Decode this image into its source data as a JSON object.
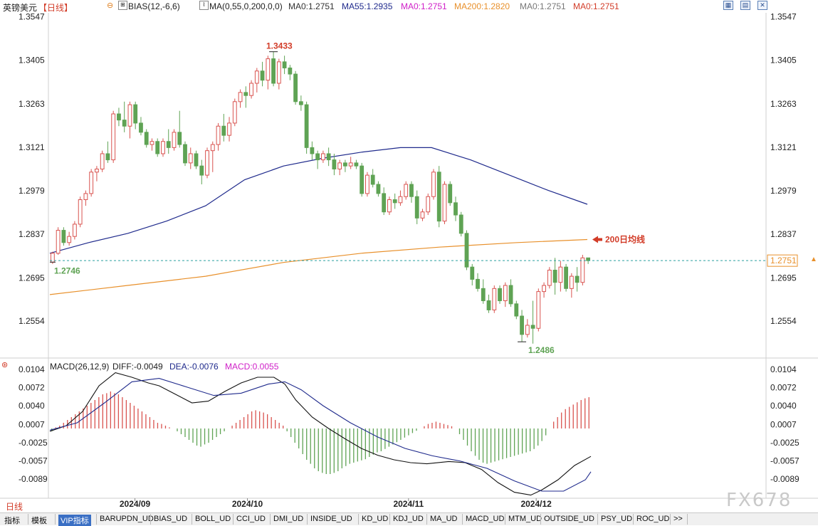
{
  "header": {
    "symbol": "英镑美元",
    "period": "【日线】",
    "bias": "BIAS(12,-6,6)",
    "ma_params": "MA(0,55,0,200,0,0)",
    "ma0_a": "MA0:1.2751",
    "ma55": "MA55:1.2935",
    "ma0_b": "MA0:1.2751",
    "ma200": "MA200:1.2820",
    "ma0_c": "MA0:1.2751",
    "ma0_d": "MA0:1.2751"
  },
  "macd_header": {
    "title": "MACD(26,12,9)",
    "diff": "DIFF:-0.0049",
    "dea": "DEA:-0.0076",
    "macd": "MACD:0.0055"
  },
  "annotations": {
    "high": "1.3433",
    "low": "1.2486",
    "start": "1.2746",
    "ma200_label": "200日均线",
    "current_price": "1.2751"
  },
  "bottom_tabs": [
    "指标",
    "模板",
    "VIP指标",
    "BARUPDN_UD",
    "BIAS_UD",
    "BOLL_UD",
    "CCI_UD",
    "DMI_UD",
    "INSIDE_UD",
    "KD_UD",
    "KDJ_UD",
    "MA_UD",
    "MACD_UD",
    "MTM_UD",
    "OUTSIDE_UD",
    "PSY_UD",
    "ROC_UD",
    ">>"
  ],
  "period_button": "日线",
  "watermark": "FX678",
  "colors": {
    "up": "#d9534f",
    "down": "#5fa354",
    "ma55": "#1f2a8c",
    "ma200": "#e8902b",
    "diff": "#111111",
    "dea": "#1f2a8c",
    "macd_label": "#d020c8",
    "current": "#2aa0a0"
  },
  "chart_data": [
    {
      "type": "candlestick",
      "title": "英镑美元【日线】",
      "y_ticks": [
        "1.3547",
        "1.3405",
        "1.3263",
        "1.3121",
        "1.2979",
        "1.2837",
        "1.2695",
        "1.2554"
      ],
      "ylim": [
        1.244,
        1.356
      ],
      "x_ticks": [
        "2024/09",
        "2024/10",
        "2024/11",
        "2024/12"
      ],
      "candles": [
        [
          1.2746,
          1.278,
          1.274,
          1.2775
        ],
        [
          1.2775,
          1.286,
          1.277,
          1.285
        ],
        [
          1.285,
          1.286,
          1.28,
          1.281
        ],
        [
          1.281,
          1.2845,
          1.28,
          1.283
        ],
        [
          1.283,
          1.288,
          1.282,
          1.287
        ],
        [
          1.287,
          1.296,
          1.286,
          1.295
        ],
        [
          1.295,
          1.298,
          1.293,
          1.297
        ],
        [
          1.297,
          1.305,
          1.296,
          1.304
        ],
        [
          1.304,
          1.306,
          1.301,
          1.305
        ],
        [
          1.305,
          1.311,
          1.304,
          1.31
        ],
        [
          1.31,
          1.314,
          1.307,
          1.308
        ],
        [
          1.308,
          1.324,
          1.307,
          1.323
        ],
        [
          1.323,
          1.325,
          1.319,
          1.321
        ],
        [
          1.321,
          1.327,
          1.317,
          1.319
        ],
        [
          1.319,
          1.327,
          1.315,
          1.326
        ],
        [
          1.326,
          1.327,
          1.318,
          1.32
        ],
        [
          1.32,
          1.322,
          1.316,
          1.317
        ],
        [
          1.317,
          1.318,
          1.312,
          1.313
        ],
        [
          1.313,
          1.315,
          1.311,
          1.314
        ],
        [
          1.314,
          1.315,
          1.309,
          1.31
        ],
        [
          1.31,
          1.315,
          1.309,
          1.314
        ],
        [
          1.314,
          1.318,
          1.31,
          1.312
        ],
        [
          1.312,
          1.318,
          1.311,
          1.317
        ],
        [
          1.317,
          1.324,
          1.312,
          1.313
        ],
        [
          1.313,
          1.314,
          1.306,
          1.307
        ],
        [
          1.307,
          1.312,
          1.305,
          1.31
        ],
        [
          1.31,
          1.311,
          1.305,
          1.306
        ],
        [
          1.306,
          1.308,
          1.3,
          1.303
        ],
        [
          1.303,
          1.312,
          1.302,
          1.311
        ],
        [
          1.311,
          1.314,
          1.304,
          1.313
        ],
        [
          1.313,
          1.32,
          1.311,
          1.319
        ],
        [
          1.319,
          1.323,
          1.314,
          1.316
        ],
        [
          1.316,
          1.322,
          1.314,
          1.32
        ],
        [
          1.32,
          1.328,
          1.319,
          1.327
        ],
        [
          1.327,
          1.331,
          1.325,
          1.33
        ],
        [
          1.33,
          1.332,
          1.325,
          1.329
        ],
        [
          1.329,
          1.334,
          1.328,
          1.333
        ],
        [
          1.333,
          1.338,
          1.33,
          1.337
        ],
        [
          1.337,
          1.34,
          1.332,
          1.334
        ],
        [
          1.334,
          1.342,
          1.331,
          1.341
        ],
        [
          1.341,
          1.3433,
          1.332,
          1.333
        ],
        [
          1.333,
          1.341,
          1.331,
          1.34
        ],
        [
          1.34,
          1.342,
          1.336,
          1.338
        ],
        [
          1.338,
          1.339,
          1.334,
          1.336
        ],
        [
          1.336,
          1.337,
          1.326,
          1.327
        ],
        [
          1.327,
          1.329,
          1.324,
          1.326
        ],
        [
          1.326,
          1.327,
          1.31,
          1.312
        ],
        [
          1.312,
          1.314,
          1.308,
          1.31
        ],
        [
          1.31,
          1.311,
          1.305,
          1.308
        ],
        [
          1.308,
          1.311,
          1.307,
          1.31
        ],
        [
          1.31,
          1.312,
          1.306,
          1.308
        ],
        [
          1.308,
          1.31,
          1.303,
          1.305
        ],
        [
          1.305,
          1.308,
          1.303,
          1.307
        ],
        [
          1.307,
          1.308,
          1.304,
          1.306
        ],
        [
          1.306,
          1.309,
          1.305,
          1.307
        ],
        [
          1.307,
          1.308,
          1.305,
          1.306
        ],
        [
          1.306,
          1.307,
          1.296,
          1.297
        ],
        [
          1.297,
          1.304,
          1.296,
          1.303
        ],
        [
          1.303,
          1.305,
          1.299,
          1.3
        ],
        [
          1.3,
          1.301,
          1.296,
          1.297
        ],
        [
          1.297,
          1.299,
          1.29,
          1.291
        ],
        [
          1.291,
          1.296,
          1.29,
          1.295
        ],
        [
          1.295,
          1.297,
          1.292,
          1.294
        ],
        [
          1.294,
          1.298,
          1.293,
          1.296
        ],
        [
          1.296,
          1.301,
          1.295,
          1.3
        ],
        [
          1.3,
          1.301,
          1.294,
          1.296
        ],
        [
          1.296,
          1.298,
          1.287,
          1.289
        ],
        [
          1.289,
          1.292,
          1.288,
          1.291
        ],
        [
          1.291,
          1.297,
          1.29,
          1.296
        ],
        [
          1.296,
          1.305,
          1.295,
          1.304
        ],
        [
          1.304,
          1.306,
          1.286,
          1.288
        ],
        [
          1.288,
          1.301,
          1.287,
          1.3
        ],
        [
          1.3,
          1.301,
          1.293,
          1.294
        ],
        [
          1.294,
          1.296,
          1.288,
          1.29
        ],
        [
          1.29,
          1.291,
          1.283,
          1.284
        ],
        [
          1.284,
          1.285,
          1.272,
          1.273
        ],
        [
          1.273,
          1.274,
          1.267,
          1.269
        ],
        [
          1.269,
          1.271,
          1.265,
          1.266
        ],
        [
          1.266,
          1.269,
          1.261,
          1.262
        ],
        [
          1.262,
          1.264,
          1.258,
          1.259
        ],
        [
          1.259,
          1.267,
          1.258,
          1.266
        ],
        [
          1.266,
          1.267,
          1.261,
          1.262
        ],
        [
          1.262,
          1.268,
          1.26,
          1.267
        ],
        [
          1.267,
          1.269,
          1.26,
          1.261
        ],
        [
          1.261,
          1.262,
          1.256,
          1.257
        ],
        [
          1.257,
          1.259,
          1.2486,
          1.251
        ],
        [
          1.251,
          1.256,
          1.25,
          1.254
        ],
        [
          1.254,
          1.262,
          1.248,
          1.253
        ],
        [
          1.253,
          1.266,
          1.252,
          1.265
        ],
        [
          1.265,
          1.268,
          1.263,
          1.267
        ],
        [
          1.267,
          1.273,
          1.266,
          1.272
        ],
        [
          1.272,
          1.276,
          1.264,
          1.268
        ],
        [
          1.268,
          1.275,
          1.265,
          1.273
        ],
        [
          1.273,
          1.274,
          1.265,
          1.266
        ],
        [
          1.266,
          1.271,
          1.263,
          1.27
        ],
        [
          1.27,
          1.273,
          1.265,
          1.268
        ],
        [
          1.268,
          1.277,
          1.267,
          1.276
        ],
        [
          1.276,
          1.276,
          1.274,
          1.2751
        ]
      ],
      "ma55": [
        [
          0,
          1.2775
        ],
        [
          10,
          1.281
        ],
        [
          20,
          1.284
        ],
        [
          30,
          1.288
        ],
        [
          40,
          1.293
        ],
        [
          50,
          1.3015
        ],
        [
          60,
          1.306
        ],
        [
          70,
          1.3085
        ],
        [
          80,
          1.3105
        ],
        [
          90,
          1.312
        ],
        [
          98,
          1.312
        ],
        [
          108,
          1.308
        ],
        [
          118,
          1.303
        ],
        [
          128,
          1.298
        ],
        [
          138,
          1.2935
        ]
      ],
      "ma200": [
        [
          0,
          1.264
        ],
        [
          20,
          1.267
        ],
        [
          40,
          1.27
        ],
        [
          60,
          1.2745
        ],
        [
          80,
          1.2775
        ],
        [
          100,
          1.2795
        ],
        [
          120,
          1.281
        ],
        [
          138,
          1.282
        ]
      ]
    },
    {
      "type": "macd",
      "title": "MACD(26,12,9)",
      "y_ticks": [
        "0.0104",
        "0.0072",
        "0.0040",
        "0.0007",
        "-0.0025",
        "-0.0057",
        "-0.0089"
      ],
      "ylim": [
        -0.012,
        0.0115
      ],
      "diff": [
        [
          0,
          -0.0005
        ],
        [
          6,
          0.0005
        ],
        [
          12,
          0.003
        ],
        [
          18,
          0.0075
        ],
        [
          24,
          0.0098
        ],
        [
          30,
          0.009
        ],
        [
          36,
          0.008
        ],
        [
          40,
          0.0075
        ],
        [
          46,
          0.006
        ],
        [
          52,
          0.0045
        ],
        [
          58,
          0.0048
        ],
        [
          64,
          0.0065
        ],
        [
          70,
          0.008
        ],
        [
          76,
          0.009
        ],
        [
          82,
          0.009
        ],
        [
          86,
          0.0078
        ],
        [
          90,
          0.005
        ],
        [
          96,
          0.002
        ],
        [
          102,
          0.0
        ],
        [
          108,
          -0.0018
        ],
        [
          114,
          -0.0035
        ],
        [
          120,
          -0.0047
        ],
        [
          126,
          -0.0055
        ],
        [
          132,
          -0.006
        ],
        [
          138,
          -0.0062
        ],
        [
          146,
          -0.0058
        ],
        [
          152,
          -0.006
        ],
        [
          158,
          -0.0072
        ],
        [
          164,
          -0.0095
        ],
        [
          170,
          -0.0112
        ],
        [
          176,
          -0.0117
        ],
        [
          180,
          -0.0108
        ],
        [
          186,
          -0.009
        ],
        [
          192,
          -0.0065
        ],
        [
          198,
          -0.0049
        ]
      ],
      "dea": [
        [
          0,
          -0.0003
        ],
        [
          10,
          0.001
        ],
        [
          20,
          0.0045
        ],
        [
          30,
          0.0082
        ],
        [
          40,
          0.0088
        ],
        [
          50,
          0.0073
        ],
        [
          60,
          0.0058
        ],
        [
          70,
          0.0062
        ],
        [
          80,
          0.0078
        ],
        [
          86,
          0.0082
        ],
        [
          92,
          0.0068
        ],
        [
          100,
          0.004
        ],
        [
          110,
          0.001
        ],
        [
          120,
          -0.0015
        ],
        [
          130,
          -0.0035
        ],
        [
          140,
          -0.0048
        ],
        [
          150,
          -0.0057
        ],
        [
          160,
          -0.007
        ],
        [
          170,
          -0.0092
        ],
        [
          180,
          -0.011
        ],
        [
          188,
          -0.011
        ],
        [
          196,
          -0.009
        ],
        [
          198,
          -0.0076
        ]
      ],
      "hist": [
        -0.0005,
        0.0002,
        0.0005,
        0.001,
        0.0015,
        0.002,
        0.0025,
        0.003,
        0.0035,
        0.004,
        0.0045,
        0.005,
        0.0055,
        0.006,
        0.0062,
        0.0065,
        0.0062,
        0.006,
        0.0055,
        0.005,
        0.0045,
        0.004,
        0.0035,
        0.003,
        0.0025,
        0.002,
        0.0015,
        0.001,
        0.0008,
        0.0005,
        0.0002,
        0.0,
        -0.0005,
        -0.001,
        -0.0015,
        -0.002,
        -0.0025,
        -0.003,
        -0.0032,
        -0.0028,
        -0.0025,
        -0.002,
        -0.0015,
        -0.001,
        -0.0005,
        0.0,
        0.0005,
        0.001,
        0.0015,
        0.002,
        0.0025,
        0.003,
        0.0032,
        0.003,
        0.0028,
        0.0025,
        0.002,
        0.0015,
        0.001,
        0.0005,
        -0.0005,
        -0.0015,
        -0.0025,
        -0.0035,
        -0.0045,
        -0.0055,
        -0.0062,
        -0.007,
        -0.0075,
        -0.0078,
        -0.008,
        -0.008,
        -0.0078,
        -0.0075,
        -0.007,
        -0.0066,
        -0.0062,
        -0.006,
        -0.0058,
        -0.0056,
        -0.0054,
        -0.005,
        -0.0046,
        -0.0042,
        -0.004,
        -0.0036,
        -0.0032,
        -0.0028,
        -0.0024,
        -0.002,
        -0.0016,
        -0.0012,
        -0.0008,
        -0.0004,
        0.0,
        0.0004,
        0.0008,
        0.001,
        0.0012,
        0.001,
        0.0008,
        0.0006,
        0.0004,
        0.0,
        -0.001,
        -0.002,
        -0.003,
        -0.004,
        -0.0048,
        -0.0055,
        -0.006,
        -0.0062,
        -0.006,
        -0.0058,
        -0.0056,
        -0.0054,
        -0.0052,
        -0.005,
        -0.0048,
        -0.0046,
        -0.0044,
        -0.0042,
        -0.004,
        -0.0036,
        -0.003,
        -0.0022,
        -0.0012,
        0.0,
        0.0012,
        0.002,
        0.0028,
        0.0034,
        0.0038,
        0.0042,
        0.0046,
        0.005,
        0.0053,
        0.0055
      ]
    }
  ]
}
